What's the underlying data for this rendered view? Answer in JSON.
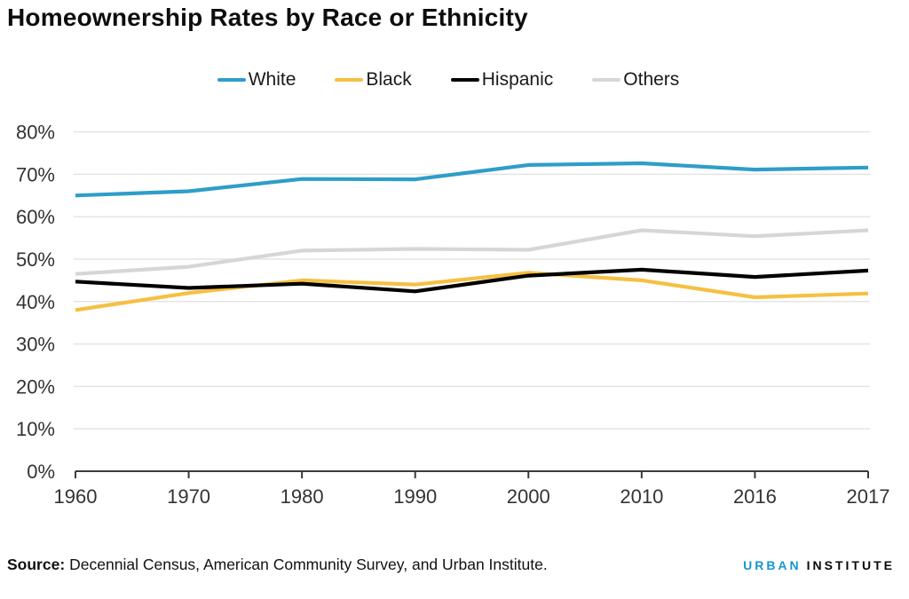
{
  "page": {
    "title": "Homeownership Rates by Race or Ethnicity",
    "source_label": "Source:",
    "source_text": "Decennial Census, American Community Survey, and Urban Institute.",
    "logo": {
      "part1": "URBAN",
      "part2": "INSTITUTE"
    }
  },
  "colors": {
    "white_line": "#2E9DC9",
    "black_line": "#F5C042",
    "hispanic_line": "#000000",
    "others_line": "#D6D6D6",
    "gridline": "#E4E4E4",
    "axis": "#3A3A3A",
    "tick_text": "#333333",
    "logo_blue": "#1696D2"
  },
  "chart_data": {
    "type": "line",
    "title": "Homeownership Rates by Race or Ethnicity",
    "categories": [
      "1960",
      "1970",
      "1980",
      "1990",
      "2000",
      "2010",
      "2016",
      "2017"
    ],
    "series": [
      {
        "name": "White",
        "color": "#2E9DC9",
        "values": [
          65.0,
          66.0,
          68.9,
          68.8,
          72.2,
          72.6,
          71.1,
          71.6
        ]
      },
      {
        "name": "Black",
        "color": "#F5C042",
        "values": [
          38.0,
          42.0,
          45.0,
          44.0,
          46.8,
          45.0,
          41.0,
          41.9
        ]
      },
      {
        "name": "Hispanic",
        "color": "#000000",
        "values": [
          44.7,
          43.2,
          44.2,
          42.4,
          46.1,
          47.5,
          45.8,
          47.3
        ]
      },
      {
        "name": "Others",
        "color": "#D6D6D6",
        "values": [
          46.5,
          48.2,
          52.0,
          52.4,
          52.2,
          56.8,
          55.4,
          56.8
        ]
      }
    ],
    "xlabel": "",
    "ylabel": "",
    "ylim": [
      0,
      80
    ],
    "y_ticks": [
      0,
      10,
      20,
      30,
      40,
      50,
      60,
      70,
      80
    ],
    "y_tick_suffix": "%",
    "grid": true,
    "legend_position": "top"
  }
}
